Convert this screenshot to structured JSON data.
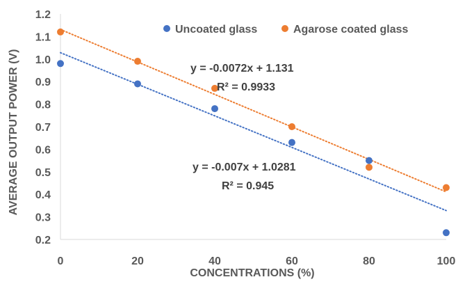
{
  "chart_data": {
    "type": "scatter",
    "title": "",
    "xlabel": "CONCENTRATIONS (%)",
    "ylabel": "AVERAGE OUTPUT POWER (V)",
    "xlim": [
      0,
      100
    ],
    "ylim": [
      0.2,
      1.2
    ],
    "x_ticks": [
      "0",
      "20",
      "40",
      "60",
      "80",
      "100"
    ],
    "y_ticks": [
      "0.2",
      "0.3",
      "0.4",
      "0.5",
      "0.6",
      "0.7",
      "0.8",
      "0.9",
      "1.0",
      "1.1",
      "1.2"
    ],
    "grid": false,
    "legend_position": "top-right",
    "series": [
      {
        "name": "Uncoated glass",
        "color": "#4472C4",
        "x": [
          0,
          20,
          40,
          60,
          80,
          100
        ],
        "y": [
          0.98,
          0.89,
          0.78,
          0.63,
          0.55,
          0.23
        ],
        "trendline": {
          "slope": -0.007,
          "intercept": 1.0281
        },
        "equation": "y = -0.007x + 1.0281",
        "r_squared": "R² = 0.945"
      },
      {
        "name": "Agarose coated glass",
        "color": "#ED7D31",
        "x": [
          0,
          20,
          40,
          60,
          80,
          100
        ],
        "y": [
          1.12,
          0.99,
          0.87,
          0.7,
          0.52,
          0.43
        ],
        "trendline": {
          "slope": -0.0072,
          "intercept": 1.131
        },
        "equation": "y = -0.0072x + 1.131",
        "r_squared": "R² = 0.9933"
      }
    ]
  }
}
